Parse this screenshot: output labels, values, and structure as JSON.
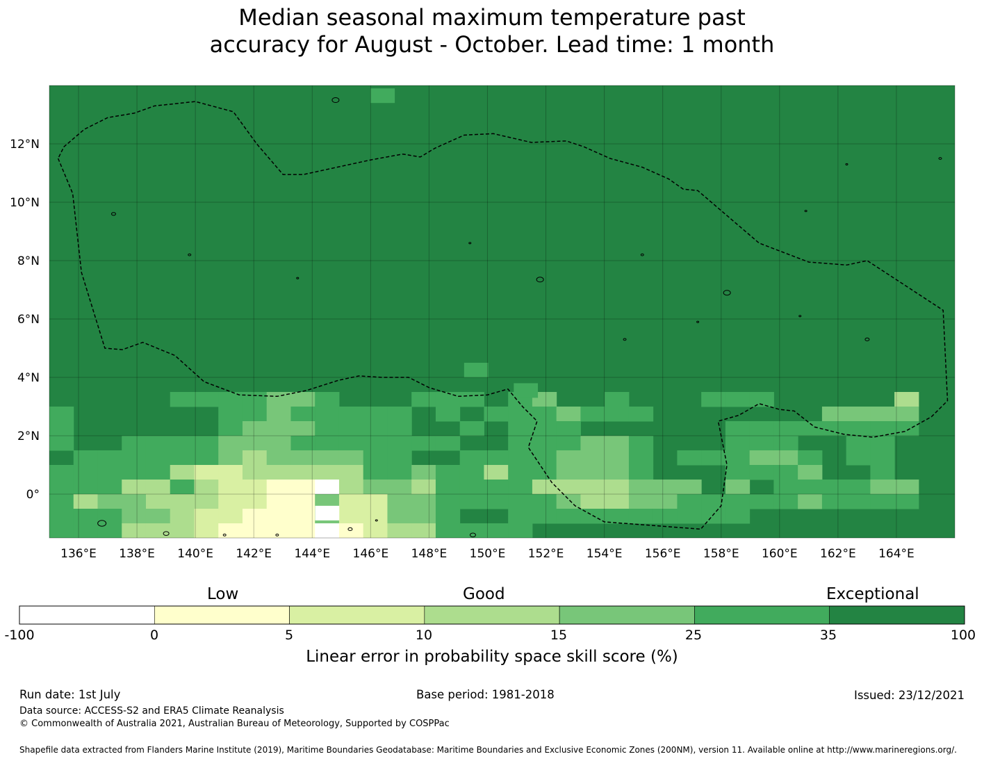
{
  "title": {
    "line1": "Median seasonal maximum temperature past",
    "line2": "accuracy for August - October. Lead time: 1 month"
  },
  "map": {
    "lon_range": [
      135,
      166
    ],
    "lat_range": [
      -1.5,
      14
    ],
    "lon_ticks": [
      "136°E",
      "138°E",
      "140°E",
      "142°E",
      "144°E",
      "146°E",
      "148°E",
      "150°E",
      "152°E",
      "154°E",
      "156°E",
      "158°E",
      "160°E",
      "162°E",
      "164°E"
    ],
    "lat_ticks": [
      "12°N",
      "10°N",
      "8°N",
      "6°N",
      "4°N",
      "2°N",
      "0°"
    ],
    "grid": true,
    "boundary": "dashed exclusive economic zone outline",
    "dominant_category": "35-100"
  },
  "colorbar": {
    "labels": {
      "low": "Low",
      "good": "Good",
      "exceptional": "Exceptional"
    },
    "ticks": [
      "-100",
      "0",
      "5",
      "10",
      "15",
      "25",
      "35",
      "100"
    ],
    "colors": [
      "#ffffff",
      "#ffffcc",
      "#d9f0a3",
      "#addd8e",
      "#78c679",
      "#41ab5d",
      "#238443"
    ],
    "title": "Linear error in probability space skill score (%)"
  },
  "footer": {
    "run_date": "Run date: 1st July",
    "base_period": "Base period: 1981-2018",
    "issued": "Issued: 23/12/2021",
    "data_source": "Data source: ACCESS-S2 and ERA5 Climate Reanalysis",
    "copyright": "© Commonwealth of Australia 2021, Australian Bureau of Meteorology, Supported by COSPPac",
    "shapefile": "Shapefile data extracted from Flanders Marine Institute (2019), Maritime Boundaries Geodatabase: Maritime Boundaries and Exclusive Economic Zones (200NM), version 11. Available online at http://www.marineregions.org/."
  }
}
